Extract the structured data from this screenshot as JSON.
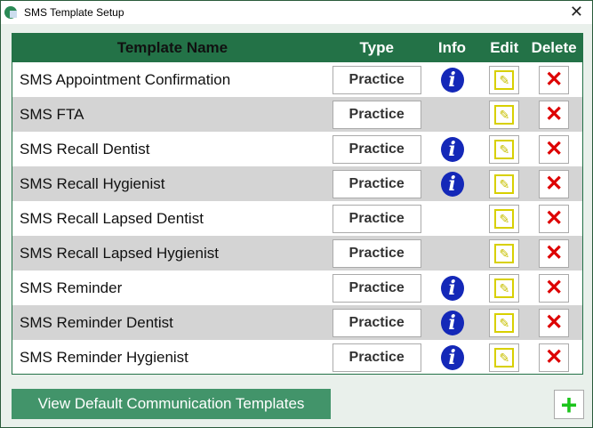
{
  "window": {
    "title": "SMS Template Setup"
  },
  "table": {
    "headers": {
      "name": "Template Name",
      "type": "Type",
      "info": "Info",
      "edit": "Edit",
      "delete": "Delete"
    },
    "rows": [
      {
        "name": "SMS Appointment Confirmation",
        "type": "Practice",
        "info": true
      },
      {
        "name": "SMS FTA",
        "type": "Practice",
        "info": false
      },
      {
        "name": "SMS Recall Dentist",
        "type": "Practice",
        "info": true
      },
      {
        "name": "SMS Recall Hygienist",
        "type": "Practice",
        "info": true
      },
      {
        "name": "SMS Recall Lapsed Dentist",
        "type": "Practice",
        "info": false
      },
      {
        "name": "SMS Recall Lapsed Hygienist",
        "type": "Practice",
        "info": false
      },
      {
        "name": "SMS Reminder",
        "type": "Practice",
        "info": true
      },
      {
        "name": "SMS Reminder Dentist",
        "type": "Practice",
        "info": true
      },
      {
        "name": "SMS Reminder Hygienist",
        "type": "Practice",
        "info": true
      }
    ]
  },
  "footer": {
    "view_defaults_label": "View Default Communication Templates",
    "add_label": "+"
  },
  "colors": {
    "header": "#237247",
    "button": "#42946a",
    "info": "#1428b8",
    "delete": "#dd0000",
    "add": "#1bc41b"
  }
}
